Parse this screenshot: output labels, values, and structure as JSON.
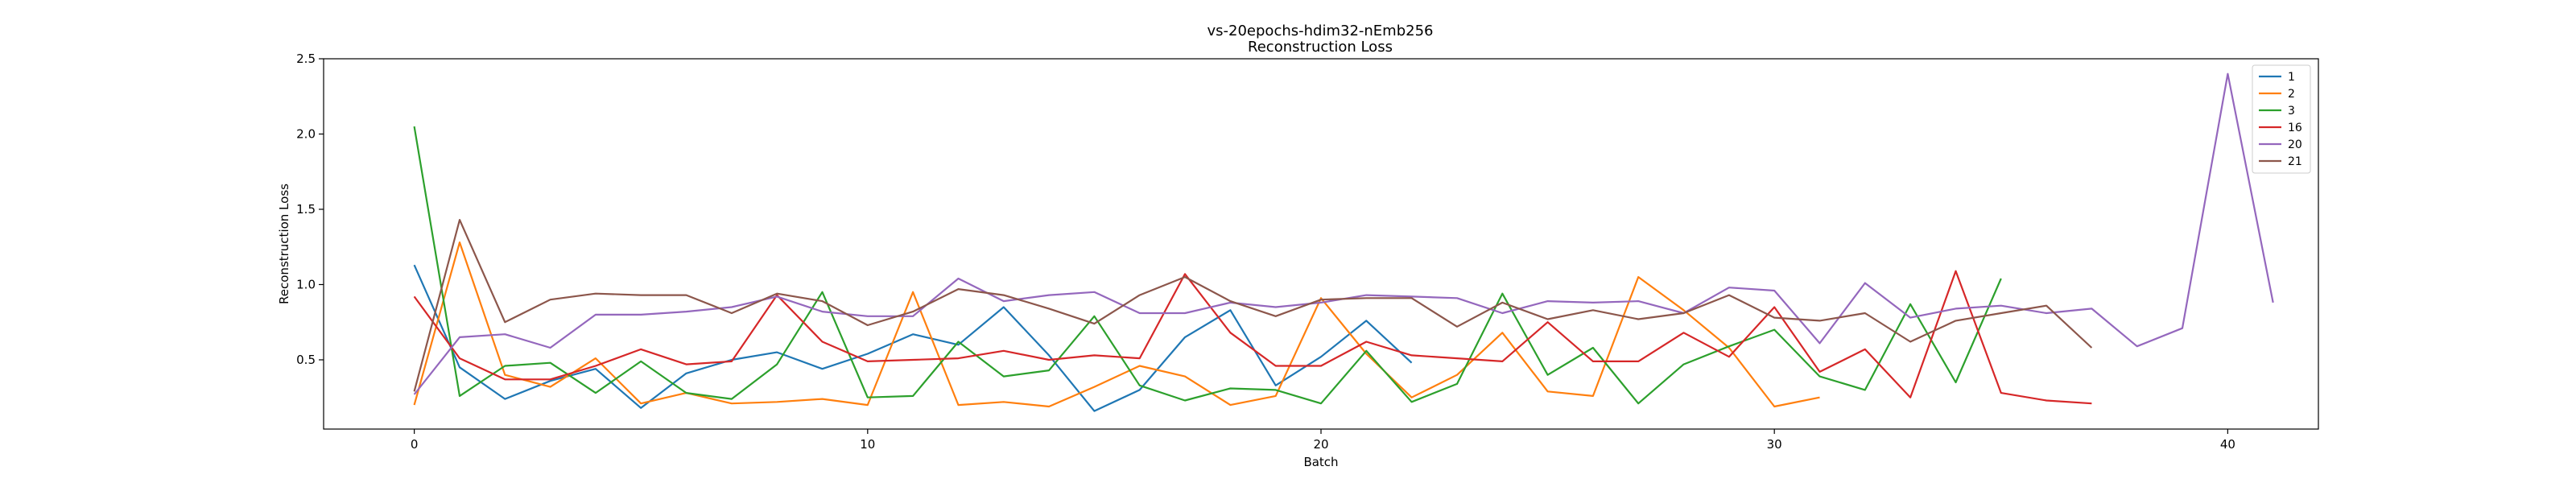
{
  "chart_data": {
    "type": "line",
    "title": "vs-20epochs-hdim32-nEmb256",
    "subtitle": "Reconstruction Loss",
    "xlabel": "Batch",
    "ylabel": "Reconstruction Loss",
    "xlim": [
      -2,
      42
    ],
    "ylim": [
      0.04,
      2.5
    ],
    "xticks": [
      0,
      10,
      20,
      30,
      40
    ],
    "yticks": [
      0.5,
      1.0,
      1.5,
      2.0,
      2.5
    ],
    "ytick_labels": [
      "0.5",
      "1.0",
      "1.5",
      "2.0",
      "2.5"
    ],
    "grid": false,
    "legend_position": "top-right",
    "series": [
      {
        "name": "1",
        "color": "#1f77b4",
        "values": [
          1.13,
          0.45,
          0.24,
          0.36,
          0.44,
          0.18,
          0.41,
          0.5,
          0.55,
          0.44,
          0.54,
          0.67,
          0.6,
          0.85,
          0.53,
          0.16,
          0.3,
          0.65,
          0.83,
          0.33,
          0.52,
          0.76,
          0.48
        ]
      },
      {
        "name": "2",
        "color": "#ff7f0e",
        "values": [
          0.2,
          1.28,
          0.4,
          0.32,
          0.51,
          0.21,
          0.28,
          0.21,
          0.22,
          0.24,
          0.2,
          0.95,
          0.2,
          0.22,
          0.19,
          0.32,
          0.46,
          0.39,
          0.2,
          0.26,
          0.91,
          0.54,
          0.25,
          0.4,
          0.68,
          0.29,
          0.26,
          1.05,
          0.83,
          0.58,
          0.19,
          0.25
        ]
      },
      {
        "name": "3",
        "color": "#2ca02c",
        "values": [
          2.05,
          0.26,
          0.46,
          0.48,
          0.28,
          0.49,
          0.28,
          0.24,
          0.47,
          0.95,
          0.25,
          0.26,
          0.62,
          0.39,
          0.43,
          0.79,
          0.33,
          0.23,
          0.31,
          0.3,
          0.21,
          0.56,
          0.22,
          0.34,
          0.94,
          0.4,
          0.58,
          0.21,
          0.47,
          0.59,
          0.7,
          0.39,
          0.3,
          0.87,
          0.35,
          1.04
        ]
      },
      {
        "name": "16",
        "color": "#d62728",
        "values": [
          0.92,
          0.51,
          0.37,
          0.37,
          0.46,
          0.57,
          0.47,
          0.49,
          0.93,
          0.62,
          0.49,
          0.5,
          0.51,
          0.56,
          0.5,
          0.53,
          0.51,
          1.07,
          0.68,
          0.46,
          0.46,
          0.62,
          0.53,
          0.51,
          0.49,
          0.75,
          0.49,
          0.49,
          0.68,
          0.52,
          0.85,
          0.42,
          0.57,
          0.25,
          1.09,
          0.28,
          0.23,
          0.21
        ]
      },
      {
        "name": "20",
        "color": "#9467bd",
        "values": [
          0.27,
          0.65,
          0.67,
          0.58,
          0.8,
          0.8,
          0.82,
          0.85,
          0.92,
          0.82,
          0.79,
          0.79,
          1.04,
          0.89,
          0.93,
          0.95,
          0.81,
          0.81,
          0.88,
          0.85,
          0.88,
          0.93,
          0.92,
          0.91,
          0.81,
          0.89,
          0.88,
          0.89,
          0.81,
          0.98,
          0.96,
          0.61,
          1.01,
          0.78,
          0.84,
          0.86,
          0.81,
          0.84,
          0.59,
          0.71,
          2.4,
          0.88
        ]
      },
      {
        "name": "21",
        "color": "#8c564b",
        "values": [
          0.29,
          1.43,
          0.75,
          0.9,
          0.94,
          0.93,
          0.93,
          0.81,
          0.94,
          0.89,
          0.73,
          0.82,
          0.97,
          0.93,
          0.84,
          0.74,
          0.93,
          1.05,
          0.89,
          0.79,
          0.9,
          0.91,
          0.91,
          0.72,
          0.88,
          0.77,
          0.83,
          0.77,
          0.81,
          0.93,
          0.78,
          0.76,
          0.81,
          0.62,
          0.76,
          0.81,
          0.86,
          0.58
        ]
      }
    ]
  }
}
